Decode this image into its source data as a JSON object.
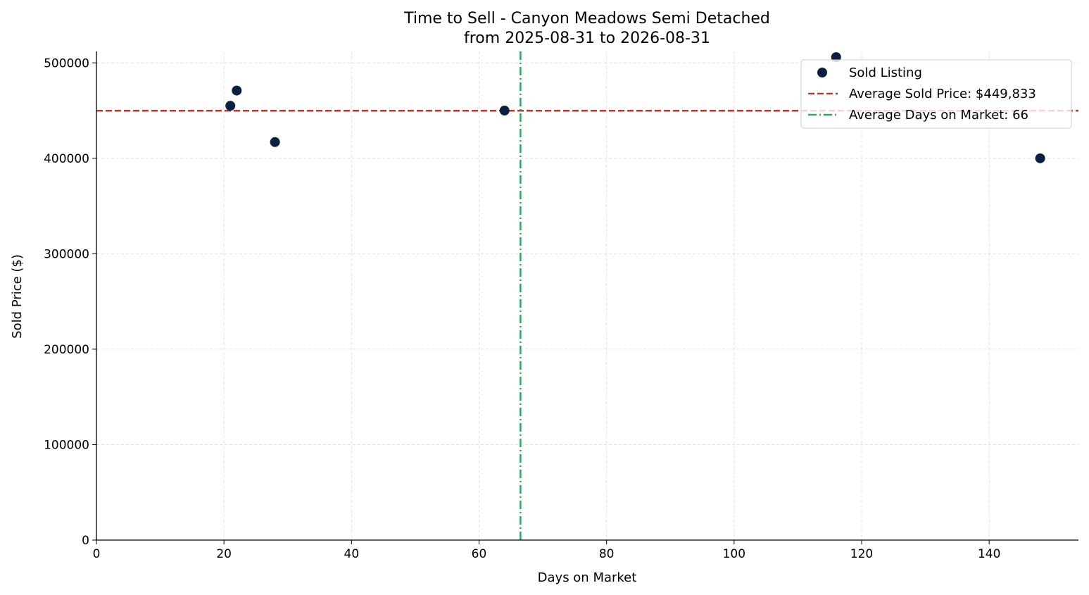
{
  "chart_data": {
    "type": "scatter",
    "title": "Time to Sell - Canyon Meadows Semi Detached",
    "subtitle": "from 2025-08-31 to 2026-08-31",
    "xlabel": "Days on Market",
    "ylabel": "Sold Price ($)",
    "xlim": [
      0,
      154
    ],
    "ylim": [
      0,
      512000
    ],
    "x_ticks": [
      0,
      20,
      40,
      60,
      80,
      100,
      120,
      140
    ],
    "y_ticks": [
      0,
      100000,
      200000,
      300000,
      400000,
      500000
    ],
    "grid": true,
    "legend_position": "top-right",
    "series": [
      {
        "name": "Sold Listing",
        "color": "#0b1f3f",
        "points": [
          {
            "x": 21,
            "y": 455000
          },
          {
            "x": 22,
            "y": 471000
          },
          {
            "x": 28,
            "y": 417000
          },
          {
            "x": 64,
            "y": 450000
          },
          {
            "x": 116,
            "y": 506000
          },
          {
            "x": 148,
            "y": 400000
          }
        ]
      }
    ],
    "reference_lines": [
      {
        "name": "Average Sold Price: $449,833",
        "orientation": "horizontal",
        "value": 449833,
        "color": "#b33a2e",
        "style": "dashed"
      },
      {
        "name": "Average Days on Market: 66",
        "orientation": "vertical",
        "value": 66.5,
        "color": "#2eaa5c",
        "style": "dashdot"
      }
    ]
  }
}
